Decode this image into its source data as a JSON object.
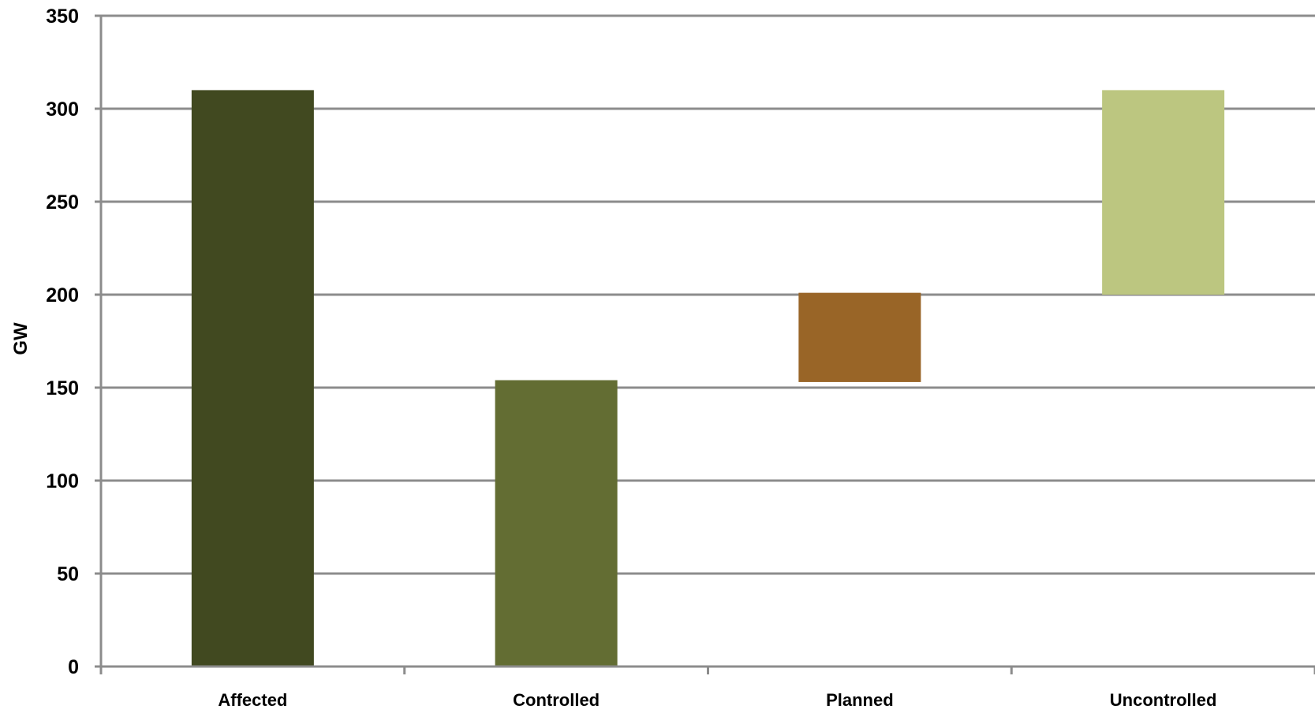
{
  "chart_data": {
    "type": "bar",
    "subtype": "waterfall",
    "categories": [
      "Affected",
      "Controlled",
      "Planned",
      "Uncontrolled"
    ],
    "ranges": [
      {
        "category": "Affected",
        "low": 0,
        "high": 310
      },
      {
        "category": "Controlled",
        "low": 0,
        "high": 154
      },
      {
        "category": "Planned",
        "low": 153,
        "high": 201
      },
      {
        "category": "Uncontrolled",
        "low": 200,
        "high": 310
      }
    ],
    "colors": [
      "#414920",
      "#636d33",
      "#996527",
      "#bcc680"
    ],
    "title": "",
    "xlabel": "",
    "ylabel": "GW",
    "ylim": [
      0,
      350
    ],
    "yticks": [
      0,
      50,
      100,
      150,
      200,
      250,
      300,
      350
    ],
    "grid": true,
    "legend": "none"
  }
}
